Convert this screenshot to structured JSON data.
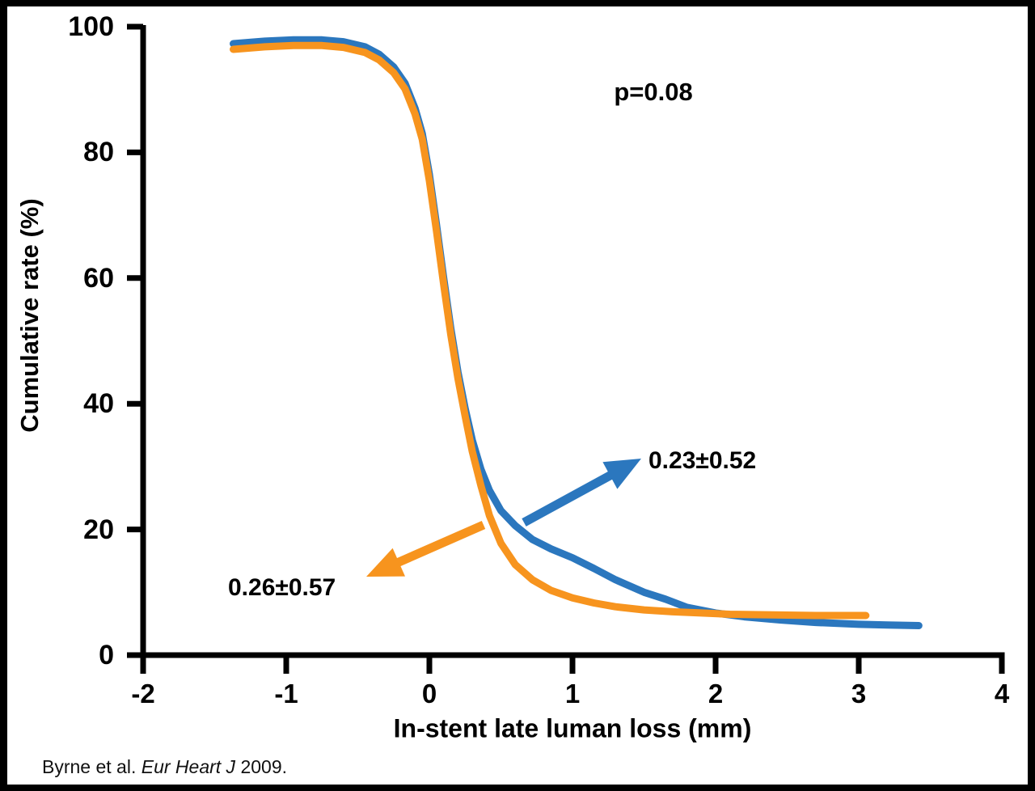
{
  "colors": {
    "blue": "#2B77BE",
    "orange": "#F7941E",
    "axis": "#000000",
    "text": "#000000",
    "background": "#FFFFFF",
    "frame": "#000000"
  },
  "chart_data": {
    "type": "line",
    "title": "",
    "xlabel": "In-stent late luman loss (mm)",
    "ylabel": "Cumulative rate (%)",
    "xlim": [
      -2,
      4
    ],
    "ylim": [
      0,
      100
    ],
    "x_ticks": [
      -2,
      -1,
      0,
      1,
      2,
      3,
      4
    ],
    "y_ticks": [
      0,
      20,
      40,
      60,
      80,
      100
    ],
    "grid": false,
    "legend_position": "none",
    "annotations": {
      "p_value": "p=0.08"
    },
    "series": [
      {
        "name": "blue-curve",
        "color_key": "blue",
        "label": "0.23±0.52",
        "points": [
          [
            -1.37,
            97.3
          ],
          [
            -1.15,
            97.7
          ],
          [
            -0.95,
            97.9
          ],
          [
            -0.75,
            97.9
          ],
          [
            -0.6,
            97.6
          ],
          [
            -0.45,
            96.8
          ],
          [
            -0.35,
            95.6
          ],
          [
            -0.25,
            93.6
          ],
          [
            -0.17,
            91.0
          ],
          [
            -0.1,
            87.0
          ],
          [
            -0.05,
            83.0
          ],
          [
            0.0,
            76.5
          ],
          [
            0.05,
            68.5
          ],
          [
            0.1,
            60.0
          ],
          [
            0.15,
            52.0
          ],
          [
            0.2,
            45.0
          ],
          [
            0.25,
            39.2
          ],
          [
            0.3,
            34.2
          ],
          [
            0.36,
            29.6
          ],
          [
            0.42,
            26.2
          ],
          [
            0.5,
            23.0
          ],
          [
            0.6,
            20.6
          ],
          [
            0.72,
            18.4
          ],
          [
            0.85,
            16.9
          ],
          [
            1.0,
            15.5
          ],
          [
            1.15,
            13.8
          ],
          [
            1.3,
            12.0
          ],
          [
            1.5,
            10.0
          ],
          [
            1.65,
            8.9
          ],
          [
            1.8,
            7.6
          ],
          [
            2.0,
            6.7
          ],
          [
            2.2,
            6.1
          ],
          [
            2.45,
            5.6
          ],
          [
            2.7,
            5.2
          ],
          [
            3.0,
            4.9
          ],
          [
            3.2,
            4.8
          ],
          [
            3.42,
            4.7
          ]
        ]
      },
      {
        "name": "orange-curve",
        "color_key": "orange",
        "label": "0.26±0.57",
        "points": [
          [
            -1.37,
            96.4
          ],
          [
            -1.15,
            96.8
          ],
          [
            -0.95,
            97.0
          ],
          [
            -0.75,
            97.0
          ],
          [
            -0.6,
            96.7
          ],
          [
            -0.45,
            95.9
          ],
          [
            -0.35,
            94.7
          ],
          [
            -0.25,
            92.7
          ],
          [
            -0.17,
            90.1
          ],
          [
            -0.1,
            86.1
          ],
          [
            -0.05,
            82.1
          ],
          [
            0.0,
            75.5
          ],
          [
            0.05,
            67.5
          ],
          [
            0.1,
            59.0
          ],
          [
            0.15,
            51.0
          ],
          [
            0.2,
            44.0
          ],
          [
            0.25,
            38.0
          ],
          [
            0.3,
            32.4
          ],
          [
            0.36,
            27.0
          ],
          [
            0.42,
            22.2
          ],
          [
            0.5,
            17.8
          ],
          [
            0.6,
            14.4
          ],
          [
            0.72,
            12.0
          ],
          [
            0.85,
            10.3
          ],
          [
            1.0,
            9.1
          ],
          [
            1.15,
            8.3
          ],
          [
            1.3,
            7.7
          ],
          [
            1.5,
            7.2
          ],
          [
            1.7,
            6.9
          ],
          [
            1.9,
            6.7
          ],
          [
            2.1,
            6.5
          ],
          [
            2.4,
            6.4
          ],
          [
            2.7,
            6.3
          ],
          [
            3.05,
            6.3
          ]
        ]
      }
    ]
  },
  "citation": {
    "prefix": "Byrne et al. ",
    "italic": "Eur Heart J",
    "suffix": " 2009."
  }
}
